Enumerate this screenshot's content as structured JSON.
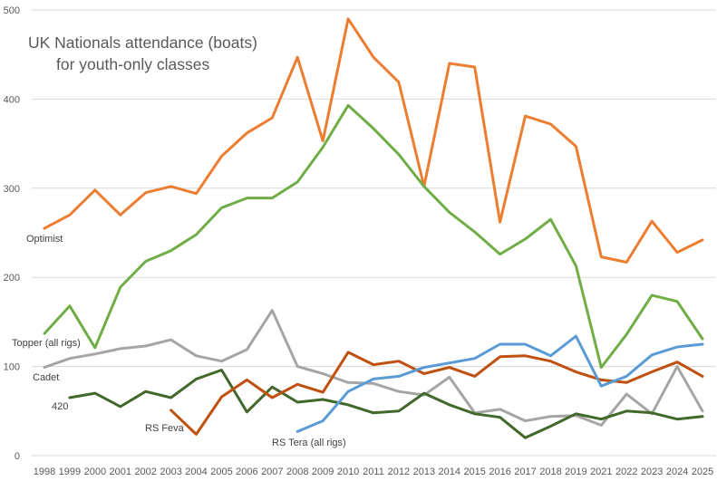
{
  "chart_data": {
    "type": "line",
    "title": [
      "UK Nationals attendance (boats)",
      "for youth-only classes"
    ],
    "xlabel": "",
    "ylabel": "",
    "ylim": [
      0,
      500
    ],
    "yticks": [
      0,
      100,
      200,
      300,
      400,
      500
    ],
    "grid": true,
    "legend": "inline labels",
    "categories": [
      "1998",
      "1999",
      "2000",
      "2001",
      "2002",
      "2003",
      "2004",
      "2005",
      "2006",
      "2007",
      "2008",
      "2009",
      "2010",
      "2011",
      "2012",
      "2013",
      "2014",
      "2015",
      "2016",
      "2017",
      "2018",
      "2019",
      "2021",
      "2022",
      "2023",
      "2024",
      "2025"
    ],
    "series": [
      {
        "name": "Optimist",
        "color": "#ED7D31",
        "values": [
          255,
          270,
          298,
          270,
          295,
          302,
          294,
          336,
          362,
          379,
          447,
          353,
          490,
          447,
          419,
          302,
          440,
          436,
          262,
          381,
          372,
          347,
          223,
          217,
          263,
          228,
          242
        ]
      },
      {
        "name": "Topper (all rigs)",
        "color": "#70AD47",
        "values": [
          137,
          168,
          121,
          189,
          218,
          230,
          248,
          278,
          289,
          289,
          307,
          346,
          393,
          367,
          338,
          302,
          273,
          251,
          226,
          243,
          265,
          213,
          99,
          136,
          180,
          173,
          131
        ]
      },
      {
        "name": "Cadet",
        "color": "#A5A5A5",
        "values": [
          99,
          109,
          114,
          120,
          123,
          130,
          112,
          106,
          119,
          163,
          100,
          92,
          82,
          81,
          72,
          68,
          88,
          48,
          52,
          39,
          44,
          45,
          34,
          69,
          47,
          100,
          50
        ]
      },
      {
        "name": "420",
        "color": "#43682B",
        "values": [
          null,
          65,
          70,
          55,
          72,
          65,
          86,
          96,
          49,
          77,
          60,
          63,
          57,
          48,
          50,
          70,
          57,
          47,
          43,
          20,
          33,
          47,
          41,
          50,
          48,
          41,
          44
        ]
      },
      {
        "name": "RS Feva",
        "color": "#C0500F",
        "values": [
          null,
          null,
          null,
          null,
          null,
          51,
          24,
          66,
          85,
          65,
          80,
          71,
          116,
          102,
          106,
          92,
          99,
          89,
          111,
          112,
          106,
          94,
          85,
          82,
          94,
          105,
          89
        ]
      },
      {
        "name": "RS Tera (all rigs)",
        "color": "#5B9BD5",
        "values": [
          null,
          null,
          null,
          null,
          null,
          null,
          null,
          null,
          null,
          null,
          27,
          39,
          72,
          86,
          89,
          99,
          104,
          109,
          125,
          125,
          112,
          134,
          78,
          89,
          113,
          122,
          125
        ]
      }
    ]
  }
}
